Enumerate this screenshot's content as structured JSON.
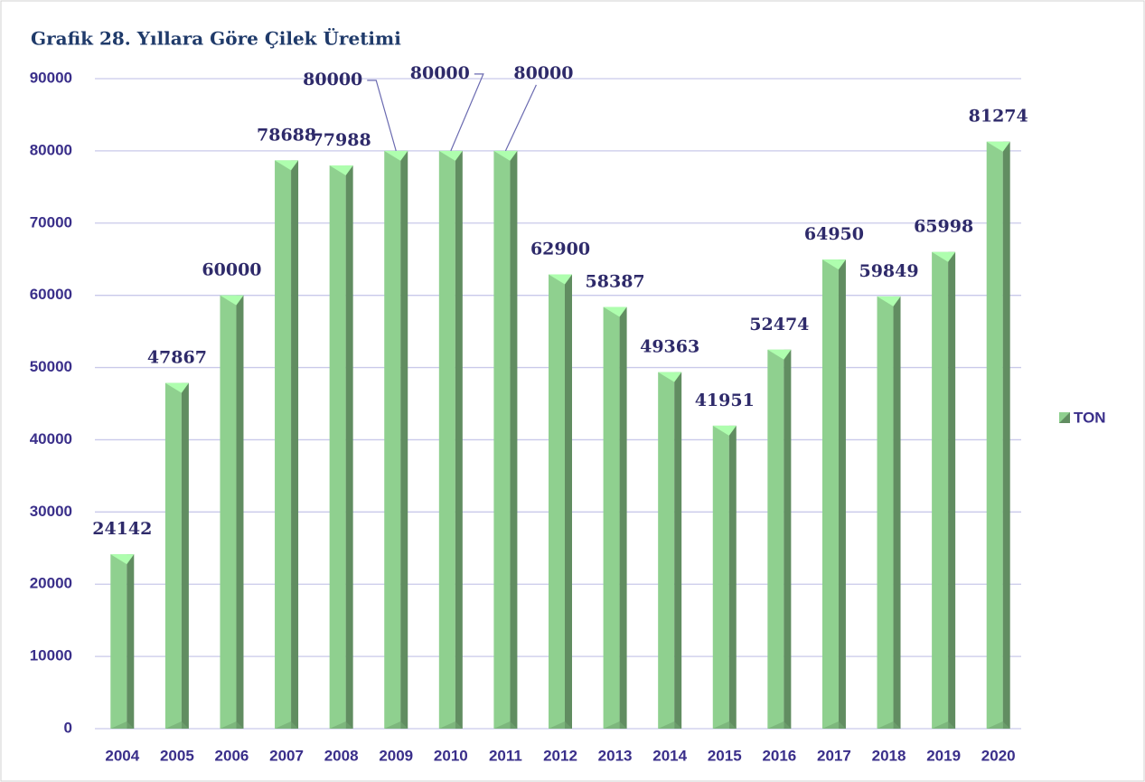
{
  "chart_data": {
    "type": "bar",
    "title": "Grafik 28. Yıllara Göre Çilek Üretimi",
    "categories": [
      "2004",
      "2005",
      "2006",
      "2007",
      "2008",
      "2009",
      "2010",
      "2011",
      "2012",
      "2013",
      "2014",
      "2015",
      "2016",
      "2017",
      "2018",
      "2019",
      "2020"
    ],
    "series": [
      {
        "name": "TON",
        "color": "#8fd08f",
        "values": [
          24142,
          47867,
          60000,
          78688,
          77988,
          80000,
          80000,
          80000,
          62900,
          58387,
          49363,
          41951,
          52474,
          64950,
          59849,
          65998,
          81274
        ]
      }
    ],
    "ylim": [
      0,
      90000
    ],
    "yticks": [
      0,
      10000,
      20000,
      30000,
      40000,
      50000,
      60000,
      70000,
      80000,
      90000
    ],
    "grid": true,
    "legend": "right"
  }
}
